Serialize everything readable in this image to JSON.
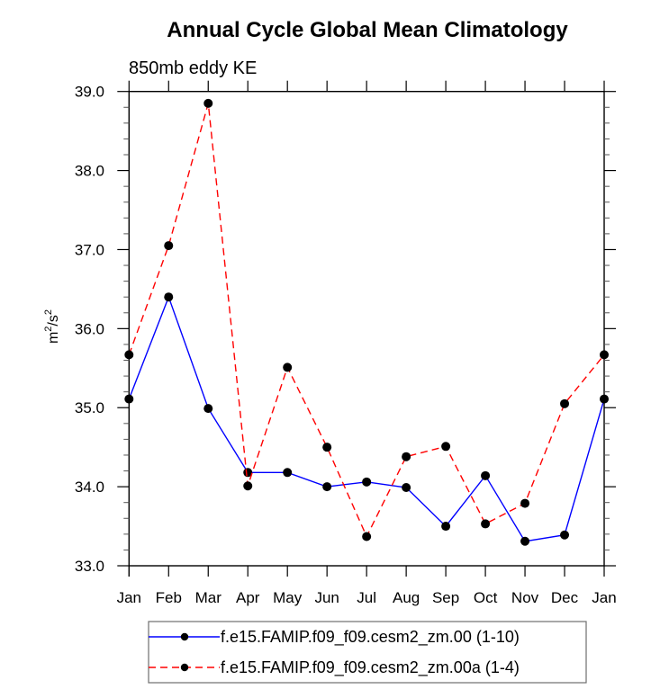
{
  "chart_data": {
    "type": "line",
    "title": "Annual Cycle Global Mean Climatology",
    "subtitle": "850mb eddy KE",
    "xlabel": "",
    "ylabel": "m²/s²",
    "ylabel_parts": {
      "base1": "m",
      "sup1": "2",
      "sep": "/s",
      "sup2": "2"
    },
    "categories": [
      "Jan",
      "Feb",
      "Mar",
      "Apr",
      "May",
      "Jun",
      "Jul",
      "Aug",
      "Sep",
      "Oct",
      "Nov",
      "Dec",
      "Jan"
    ],
    "ylim": [
      33.0,
      39.0
    ],
    "yticks": [
      33.0,
      34.0,
      35.0,
      36.0,
      37.0,
      38.0,
      39.0
    ],
    "ytick_labels": [
      "33.0",
      "34.0",
      "35.0",
      "36.0",
      "37.0",
      "38.0",
      "39.0"
    ],
    "y_minor_per_major": 5,
    "grid": false,
    "legend_position": "bottom",
    "series": [
      {
        "name": "f.e15.FAMIP.f09_f09.cesm2_zm.00 (1-10)",
        "color": "#0000ff",
        "line_style": "solid",
        "marker": "filled-circle",
        "values": [
          35.11,
          36.4,
          34.99,
          34.18,
          34.18,
          34.0,
          34.06,
          33.99,
          33.5,
          34.14,
          33.31,
          33.39,
          35.11
        ]
      },
      {
        "name": "f.e15.FAMIP.f09_f09.cesm2_zm.00a (1-4)",
        "color": "#ff0000",
        "line_style": "dashed",
        "marker": "filled-circle",
        "values": [
          35.67,
          37.05,
          38.85,
          34.01,
          35.51,
          34.5,
          33.37,
          34.38,
          34.51,
          33.53,
          33.79,
          35.05,
          35.67
        ]
      }
    ]
  }
}
